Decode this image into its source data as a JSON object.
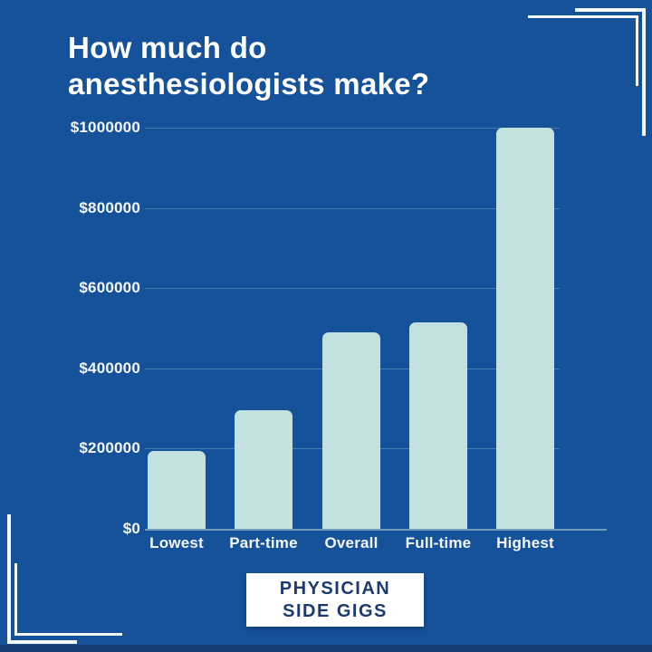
{
  "header": {
    "title_line1": "How much do",
    "title_line2": "anesthesiologists make?"
  },
  "chart_data": {
    "type": "bar",
    "title": "How much do anesthesiologists make?",
    "categories": [
      "Lowest",
      "Part-time",
      "Overall",
      "Full-time",
      "Highest"
    ],
    "values": [
      195000,
      295000,
      490000,
      515000,
      1000000
    ],
    "xlabel": "",
    "ylabel": "",
    "ylim": [
      0,
      1000000
    ],
    "yticks": [
      0,
      200000,
      400000,
      600000,
      800000,
      1000000
    ],
    "ytick_labels": [
      "$0",
      "$200000",
      "$400000",
      "$600000",
      "$800000",
      "$1000000"
    ],
    "legend": false,
    "grid": true,
    "bar_color": "#c3e2df"
  },
  "logo": {
    "line1": "PHYSICIAN",
    "line2": "SIDE GIGS"
  },
  "colors": {
    "background": "#16529a",
    "bar": "#c3e2df",
    "text": "#ffffff",
    "logo_text": "#1d3a6e",
    "bracket": "#f2f8fb",
    "bottom_strip": "#143f76"
  }
}
